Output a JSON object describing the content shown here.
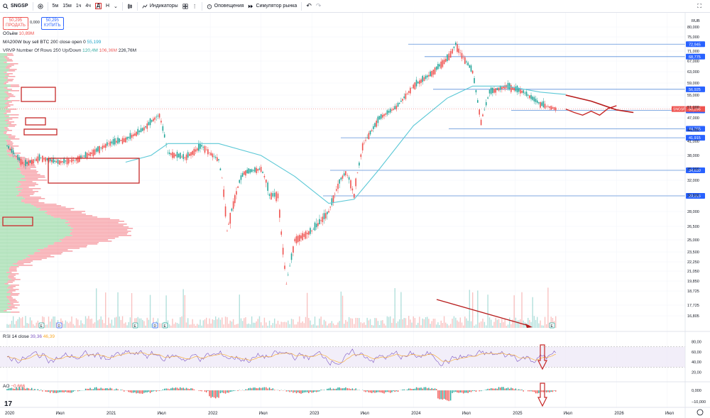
{
  "toolbar": {
    "symbol": "SNGSP",
    "intervals": [
      "5м",
      "15м",
      "1ч",
      "4ч",
      "Д",
      "Н"
    ],
    "active_interval": "Д",
    "indicators_label": "Индикаторы",
    "alerts_label": "Оповещения",
    "replay_label": "Симулятор рынка"
  },
  "trade": {
    "sell_price": "50,295",
    "sell_label": "ПРОДАТЬ",
    "spread": "0,000",
    "buy_price": "50,295",
    "buy_label": "КУПИТЬ"
  },
  "legends": {
    "volume_name": "Объём",
    "volume_value": "10,89М",
    "ma_name": "MA200W buy sell BTC 200 close open 0",
    "ma_value": "55,199",
    "vrvp_name": "VRVP Number Of Rows 250 Up/Down",
    "vrvp_up": "120,4М",
    "vrvp_down": "106,36М",
    "vrvp_total": "226,76М",
    "rsi_name": "RSI 14 close",
    "rsi_value": "39,36",
    "rsi_ma": "46,39",
    "ao_name": "AO",
    "ao_value": "−0,666"
  },
  "colors": {
    "up": "#26a69a",
    "down": "#ef5350",
    "ma_line": "#5bc8d6",
    "level_line": "#2962ff",
    "annotation": "#c62828",
    "rsi_line": "#7e57c2",
    "rsi_ma": "#f9a825",
    "rsi_band": "#ede7f6",
    "vrvp_up": "#8bd49a",
    "vrvp_down": "#f48a92"
  },
  "chart_data": {
    "type": "candlestick",
    "symbol": "SNGSP",
    "currency": "RUB",
    "last_price": 50.295,
    "last_price_label": "50,295",
    "ma200w_value": 55.199,
    "y_axis_ticks": [
      "80,000",
      "75,000",
      "71,000",
      "67,000",
      "63,000",
      "59,000",
      "55,000",
      "51,000",
      "47,000",
      "44,000",
      "41,000",
      "38,000",
      "35,000",
      "32,000",
      "30,000",
      "28,000",
      "26,500",
      "25,000",
      "23,500",
      "22,250",
      "21,050",
      "19,850",
      "18,725",
      "17,725",
      "16,805"
    ],
    "x_axis_ticks": [
      "2020",
      "Июл",
      "2021",
      "Июл",
      "2022",
      "Июл",
      "2023",
      "Июл",
      "2024",
      "Июл",
      "2025",
      "Июл",
      "2026",
      "Июл"
    ],
    "horizontal_levels": [
      "72,945",
      "68,775",
      "56,925",
      "49,795",
      "44,265",
      "41,915",
      "34,630",
      "29,915"
    ],
    "rsi_axis": [
      "80,00",
      "60,00",
      "40,00",
      "20,00"
    ],
    "ao_axis": [
      "0,000",
      "−10,000"
    ],
    "event_markers": [
      "E",
      "D",
      "E",
      "D",
      "E",
      "E"
    ],
    "price_path": [
      {
        "x": "2020-01",
        "y": 40.0
      },
      {
        "x": "2020-03",
        "y": 36.0
      },
      {
        "x": "2020-05",
        "y": 37.5
      },
      {
        "x": "2020-07",
        "y": 36.5
      },
      {
        "x": "2020-09",
        "y": 37.0
      },
      {
        "x": "2020-11",
        "y": 38.5
      },
      {
        "x": "2021-01",
        "y": 40.5
      },
      {
        "x": "2021-03",
        "y": 41.5
      },
      {
        "x": "2021-05",
        "y": 44.0
      },
      {
        "x": "2021-07",
        "y": 48.0
      },
      {
        "x": "2021-08",
        "y": 38.5
      },
      {
        "x": "2021-10",
        "y": 37.5
      },
      {
        "x": "2021-12",
        "y": 40.0
      },
      {
        "x": "2022-02",
        "y": 37.0
      },
      {
        "x": "2022-03",
        "y": 26.0
      },
      {
        "x": "2022-05",
        "y": 34.0
      },
      {
        "x": "2022-07",
        "y": 35.0
      },
      {
        "x": "2022-08",
        "y": 30.0
      },
      {
        "x": "2022-09",
        "y": 30.0
      },
      {
        "x": "2022-10",
        "y": 19.5
      },
      {
        "x": "2022-11",
        "y": 25.0
      },
      {
        "x": "2023-01",
        "y": 26.0
      },
      {
        "x": "2023-03",
        "y": 28.0
      },
      {
        "x": "2023-05",
        "y": 34.0
      },
      {
        "x": "2023-06",
        "y": 30.0
      },
      {
        "x": "2023-07",
        "y": 40.0
      },
      {
        "x": "2023-09",
        "y": 47.0
      },
      {
        "x": "2023-11",
        "y": 51.0
      },
      {
        "x": "2024-01",
        "y": 58.0
      },
      {
        "x": "2024-03",
        "y": 62.0
      },
      {
        "x": "2024-05",
        "y": 68.0
      },
      {
        "x": "2024-06",
        "y": 73.0
      },
      {
        "x": "2024-08",
        "y": 63.0
      },
      {
        "x": "2024-09",
        "y": 46.0
      },
      {
        "x": "2024-10",
        "y": 56.0
      },
      {
        "x": "2024-12",
        "y": 58.0
      },
      {
        "x": "2025-02",
        "y": 56.0
      },
      {
        "x": "2025-04",
        "y": 52.0
      },
      {
        "x": "2025-06",
        "y": 50.3
      }
    ],
    "ma_path": [
      {
        "x": "2021-03",
        "y": 36.5
      },
      {
        "x": "2021-06",
        "y": 38.0
      },
      {
        "x": "2021-08",
        "y": 40.5
      },
      {
        "x": "2022-02",
        "y": 40.5
      },
      {
        "x": "2022-07",
        "y": 38.0
      },
      {
        "x": "2022-11",
        "y": 33.0
      },
      {
        "x": "2023-03",
        "y": 29.0
      },
      {
        "x": "2023-06",
        "y": 29.5
      },
      {
        "x": "2023-09",
        "y": 35.0
      },
      {
        "x": "2024-01",
        "y": 45.0
      },
      {
        "x": "2024-05",
        "y": 54.0
      },
      {
        "x": "2024-08",
        "y": 58.0
      },
      {
        "x": "2024-12",
        "y": 58.0
      },
      {
        "x": "2025-04",
        "y": 56.0
      },
      {
        "x": "2025-07",
        "y": 55.2
      }
    ],
    "projection_path": [
      {
        "x": "2025-07",
        "y": 50.3
      },
      {
        "x": "2025-08",
        "y": 49.0
      },
      {
        "x": "2025-09",
        "y": 48.0
      },
      {
        "x": "2025-10",
        "y": 49.5
      },
      {
        "x": "2025-11",
        "y": 48.0
      },
      {
        "x": "2025-12",
        "y": 50.5
      },
      {
        "x": "2026-01",
        "y": 51.5
      }
    ],
    "declining_ma_projection": [
      {
        "x": "2025-07",
        "y": 55.0
      },
      {
        "x": "2025-10",
        "y": 53.0
      },
      {
        "x": "2026-01",
        "y": 50.0
      },
      {
        "x": "2026-03",
        "y": 49.0
      }
    ],
    "rsi_last": 39.36,
    "rsi_ma_last": 46.39,
    "ao_last": -0.666
  }
}
